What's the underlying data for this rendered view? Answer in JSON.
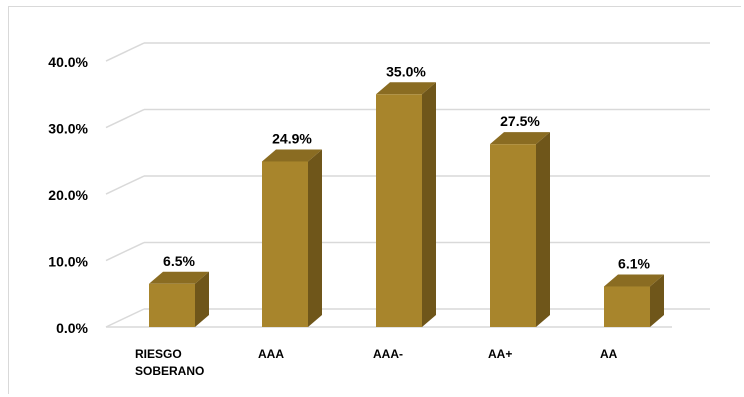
{
  "chart_data": {
    "type": "bar",
    "title": "",
    "xlabel": "",
    "ylabel": "",
    "ylim": [
      0,
      40
    ],
    "yticks": [
      "0.0%",
      "10.0%",
      "20.0%",
      "30.0%",
      "40.0%"
    ],
    "grid": true,
    "legend": "none",
    "categories": [
      [
        "RIESGO",
        "SOBERANO"
      ],
      [
        "AAA"
      ],
      [
        "AAA-"
      ],
      [
        "AA+"
      ],
      [
        "AA"
      ]
    ],
    "values": [
      6.5,
      24.9,
      35.0,
      27.5,
      6.1
    ],
    "data_labels": [
      "6.5%",
      "24.9%",
      "35.0%",
      "27.5%",
      "6.1%"
    ],
    "colors": {
      "bar_front": "#a8852c",
      "bar_side": "#6f561a",
      "bar_top": "#8a6c22",
      "grid": "#d9d9d9",
      "text": "#000000"
    }
  }
}
